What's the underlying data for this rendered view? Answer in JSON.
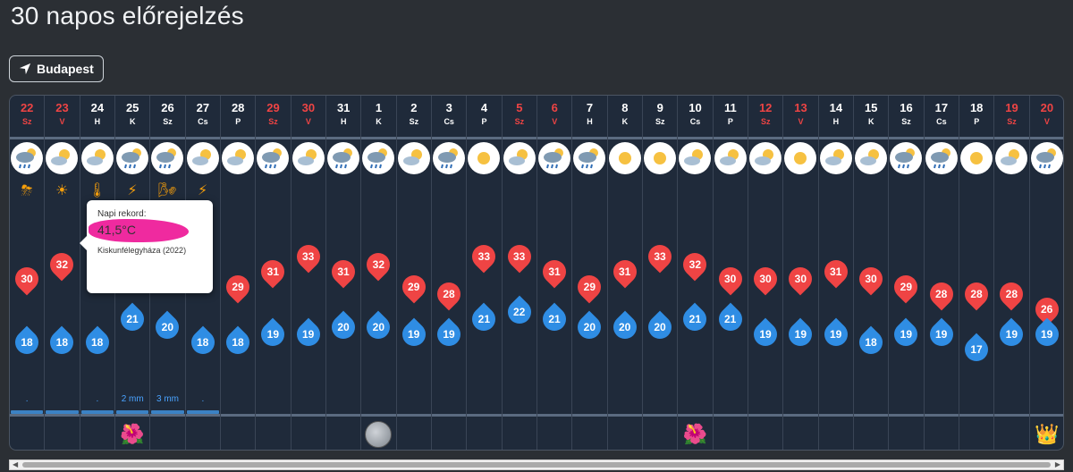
{
  "page": {
    "title": "30 napos előrejelzés"
  },
  "location": {
    "label": "Budapest"
  },
  "tooltip": {
    "label": "Napi rekord:",
    "value": "41,5°C",
    "place": "Kiskunfélegyháza (2022)"
  },
  "days": [
    {
      "d": "22",
      "a": "Sz",
      "we": true,
      "icon": "rain-cloud-icon",
      "max": "30",
      "min": "18",
      "alert": "thunderstorm-alert-icon",
      "precip": ".",
      "bar": true
    },
    {
      "d": "23",
      "a": "V",
      "we": true,
      "icon": "sun-cloud-icon",
      "max": "32",
      "min": "18",
      "alert": "uv-alert-icon",
      "precip": "",
      "bar": true
    },
    {
      "d": "24",
      "a": "H",
      "we": false,
      "icon": "sun-cloud-icon",
      "max": "",
      "min": "18",
      "alert": "heat-alert-icon",
      "precip": ".",
      "bar": true
    },
    {
      "d": "25",
      "a": "K",
      "we": false,
      "icon": "rain-cloud-icon",
      "max": "",
      "min": "21",
      "alert": "lightning-alert-icon",
      "precip": "2 mm",
      "bar": true,
      "holiday": "flower-icon"
    },
    {
      "d": "26",
      "a": "Sz",
      "we": false,
      "icon": "rain-cloud-icon",
      "max": "",
      "min": "20",
      "alert": "wind-alert-icon",
      "precip": "3 mm",
      "bar": true
    },
    {
      "d": "27",
      "a": "Cs",
      "we": false,
      "icon": "sun-cloud-icon",
      "max": "",
      "min": "18",
      "alert": "lightning-alert-icon",
      "precip": ".",
      "bar": true
    },
    {
      "d": "28",
      "a": "P",
      "we": false,
      "icon": "sun-cloud-icon",
      "max": "29",
      "min": "18",
      "precip": ""
    },
    {
      "d": "29",
      "a": "Sz",
      "we": true,
      "icon": "rain-cloud-icon",
      "max": "31",
      "min": "19",
      "precip": ""
    },
    {
      "d": "30",
      "a": "V",
      "we": true,
      "icon": "sun-cloud-icon",
      "max": "33",
      "min": "19",
      "precip": ""
    },
    {
      "d": "31",
      "a": "H",
      "we": false,
      "icon": "rain-cloud-icon",
      "max": "31",
      "min": "20",
      "precip": ""
    },
    {
      "d": "1",
      "a": "K",
      "we": false,
      "icon": "rain-cloud-icon",
      "max": "32",
      "min": "20",
      "precip": "",
      "moon": "full-moon-icon"
    },
    {
      "d": "2",
      "a": "Sz",
      "we": false,
      "icon": "sun-cloud-icon",
      "max": "29",
      "min": "19",
      "precip": ""
    },
    {
      "d": "3",
      "a": "Cs",
      "we": false,
      "icon": "rain-cloud-icon",
      "max": "28",
      "min": "19",
      "precip": ""
    },
    {
      "d": "4",
      "a": "P",
      "we": false,
      "icon": "sun-icon",
      "max": "33",
      "min": "21",
      "precip": ""
    },
    {
      "d": "5",
      "a": "Sz",
      "we": true,
      "icon": "sun-cloud-icon",
      "max": "33",
      "min": "22",
      "precip": ""
    },
    {
      "d": "6",
      "a": "V",
      "we": true,
      "icon": "rain-cloud-icon",
      "max": "31",
      "min": "21",
      "precip": ""
    },
    {
      "d": "7",
      "a": "H",
      "we": false,
      "icon": "rain-cloud-icon",
      "max": "29",
      "min": "20",
      "precip": ""
    },
    {
      "d": "8",
      "a": "K",
      "we": false,
      "icon": "sun-icon",
      "max": "31",
      "min": "20",
      "precip": ""
    },
    {
      "d": "9",
      "a": "Sz",
      "we": false,
      "icon": "sun-icon",
      "max": "33",
      "min": "20",
      "precip": ""
    },
    {
      "d": "10",
      "a": "Cs",
      "we": false,
      "icon": "sun-cloud-icon",
      "max": "32",
      "min": "21",
      "precip": "",
      "holiday": "flower-icon"
    },
    {
      "d": "11",
      "a": "P",
      "we": false,
      "icon": "sun-cloud-icon",
      "max": "30",
      "min": "21",
      "precip": ""
    },
    {
      "d": "12",
      "a": "Sz",
      "we": true,
      "icon": "sun-cloud-icon",
      "max": "30",
      "min": "19",
      "precip": ""
    },
    {
      "d": "13",
      "a": "V",
      "we": true,
      "icon": "sun-icon",
      "max": "30",
      "min": "19",
      "precip": ""
    },
    {
      "d": "14",
      "a": "H",
      "we": false,
      "icon": "sun-cloud-icon",
      "max": "31",
      "min": "19",
      "precip": ""
    },
    {
      "d": "15",
      "a": "K",
      "we": false,
      "icon": "sun-cloud-icon",
      "max": "30",
      "min": "18",
      "precip": ""
    },
    {
      "d": "16",
      "a": "Sz",
      "we": false,
      "icon": "rain-cloud-icon",
      "max": "29",
      "min": "19",
      "precip": ""
    },
    {
      "d": "17",
      "a": "Cs",
      "we": false,
      "icon": "rain-cloud-icon",
      "max": "28",
      "min": "19",
      "precip": ""
    },
    {
      "d": "18",
      "a": "P",
      "we": false,
      "icon": "sun-icon",
      "max": "28",
      "min": "17",
      "precip": ""
    },
    {
      "d": "19",
      "a": "Sz",
      "we": true,
      "icon": "sun-cloud-icon",
      "max": "28",
      "min": "19",
      "precip": ""
    },
    {
      "d": "20",
      "a": "V",
      "we": true,
      "icon": "rain-cloud-icon",
      "max": "26",
      "min": "19",
      "precip": "",
      "holiday": "crown-icon"
    }
  ]
}
